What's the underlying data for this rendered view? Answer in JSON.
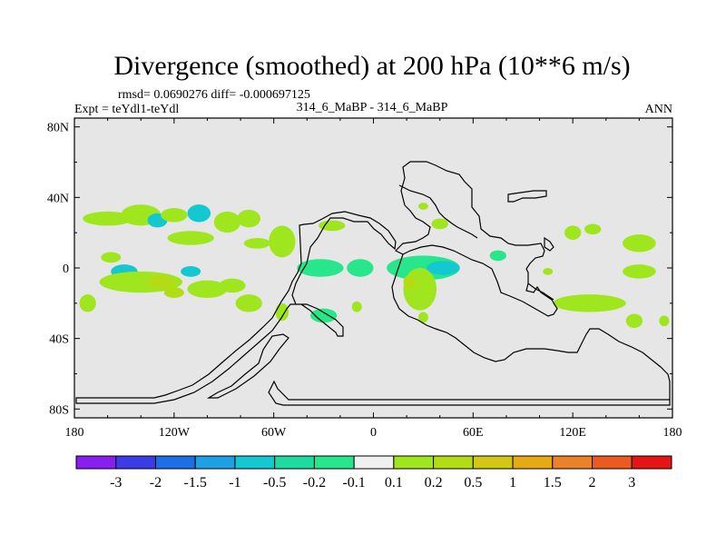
{
  "colors": {
    "land": "#e6e6e6",
    "outline": "#000000",
    "neg_3": "#8a1ef0",
    "neg_2": "#3c3ce6",
    "neg_1_5": "#1e6ee6",
    "neg_1": "#1ea0e6",
    "neg_0_5": "#14c8d2",
    "neg_0_2": "#1edca0",
    "neg_0_1": "#28e68c",
    "zero": "#f0f0f0",
    "pos_0_1": "#a0e61e",
    "pos_0_2": "#b4dc14",
    "pos_0_5": "#d2c814",
    "pos_1": "#e6aa14",
    "pos_1_5": "#eb8228",
    "pos_2": "#eb5a1e",
    "pos_3": "#e61414"
  },
  "chart_data": {
    "type": "heatmap",
    "title": "Divergence (smoothed) at 200 hPa (10**6 m/s)",
    "stats_line": "rmsd= 0.0690276 diff= -0.000697125",
    "left_label": "Expt = teYdl1-teYdl",
    "center_label": "314_6_MaBP - 314_6_MaBP",
    "right_label": "ANN",
    "x_ticks": [
      {
        "lon": -180,
        "label": "180"
      },
      {
        "lon": -120,
        "label": "120W"
      },
      {
        "lon": -60,
        "label": "60W"
      },
      {
        "lon": 0,
        "label": "0"
      },
      {
        "lon": 60,
        "label": "60E"
      },
      {
        "lon": 120,
        "label": "120E"
      },
      {
        "lon": 180,
        "label": "180"
      }
    ],
    "y_ticks": [
      {
        "lat": 80,
        "label": "80N"
      },
      {
        "lat": 40,
        "label": "40N"
      },
      {
        "lat": 0,
        "label": "0"
      },
      {
        "lat": -40,
        "label": "40S"
      },
      {
        "lat": -80,
        "label": "80S"
      }
    ],
    "xlim": [
      -180,
      180
    ],
    "ylim": [
      -85,
      85
    ],
    "colorbar": {
      "labels": [
        "-3",
        "-2",
        "-1.5",
        "-1",
        "-0.5",
        "-0.2",
        "-0.1",
        "0.1",
        "0.2",
        "0.5",
        "1",
        "1.5",
        "2",
        "3"
      ],
      "color_keys": [
        "neg_3",
        "neg_2",
        "neg_1_5",
        "neg_1",
        "neg_0_5",
        "neg_0_2",
        "neg_0_1",
        "zero",
        "pos_0_1",
        "pos_0_2",
        "pos_0_5",
        "pos_1",
        "pos_1_5",
        "pos_2",
        "pos_3"
      ]
    },
    "anomaly_regions": [
      {
        "lon": -160,
        "lat": 28,
        "rlon": 15,
        "rlat": 4,
        "level": "pos_0_1"
      },
      {
        "lon": -140,
        "lat": 30,
        "rlon": 12,
        "rlat": 6,
        "level": "pos_0_1"
      },
      {
        "lon": -130,
        "lat": 27,
        "rlon": 6,
        "rlat": 4,
        "level": "neg_0_5"
      },
      {
        "lon": -120,
        "lat": 30,
        "rlon": 8,
        "rlat": 4,
        "level": "pos_0_1"
      },
      {
        "lon": -105,
        "lat": 31,
        "rlon": 7,
        "rlat": 5,
        "level": "neg_0_5"
      },
      {
        "lon": -110,
        "lat": 17,
        "rlon": 14,
        "rlat": 4,
        "level": "pos_0_1"
      },
      {
        "lon": -88,
        "lat": 26,
        "rlon": 8,
        "rlat": 6,
        "level": "pos_0_1"
      },
      {
        "lon": -75,
        "lat": 28,
        "rlon": 7,
        "rlat": 5,
        "level": "pos_0_1"
      },
      {
        "lon": -70,
        "lat": 14,
        "rlon": 8,
        "rlat": 3,
        "level": "pos_0_1"
      },
      {
        "lon": -158,
        "lat": 6,
        "rlon": 6,
        "rlat": 3,
        "level": "pos_0_1"
      },
      {
        "lon": -150,
        "lat": -2,
        "rlon": 8,
        "rlat": 4,
        "level": "neg_0_5"
      },
      {
        "lon": -110,
        "lat": -2,
        "rlon": 6,
        "rlat": 3,
        "level": "neg_0_5"
      },
      {
        "lon": -55,
        "lat": 15,
        "rlon": 8,
        "rlat": 9,
        "level": "pos_0_1"
      },
      {
        "lon": -140,
        "lat": -8,
        "rlon": 25,
        "rlat": 6,
        "level": "pos_0_1"
      },
      {
        "lon": -128,
        "lat": -8,
        "rlon": 8,
        "rlat": 4,
        "level": "pos_0_2"
      },
      {
        "lon": -100,
        "lat": -12,
        "rlon": 12,
        "rlat": 5,
        "level": "pos_0_1"
      },
      {
        "lon": -120,
        "lat": -14,
        "rlon": 6,
        "rlat": 3,
        "level": "pos_0_2"
      },
      {
        "lon": -172,
        "lat": -20,
        "rlon": 5,
        "rlat": 5,
        "level": "pos_0_1"
      },
      {
        "lon": -85,
        "lat": -10,
        "rlon": 8,
        "rlat": 4,
        "level": "pos_0_1"
      },
      {
        "lon": -75,
        "lat": -20,
        "rlon": 8,
        "rlat": 5,
        "level": "pos_0_1"
      },
      {
        "lon": -55,
        "lat": -25,
        "rlon": 4,
        "rlat": 5,
        "level": "pos_0_1"
      },
      {
        "lon": -32,
        "lat": 0,
        "rlon": 14,
        "rlat": 5,
        "level": "neg_0_1"
      },
      {
        "lon": -8,
        "lat": 0,
        "rlon": 8,
        "rlat": 5,
        "level": "neg_0_1"
      },
      {
        "lon": -30,
        "lat": -27,
        "rlon": 8,
        "rlat": 4,
        "level": "neg_0_1"
      },
      {
        "lon": -10,
        "lat": -22,
        "rlon": 3,
        "rlat": 3,
        "level": "pos_0_1"
      },
      {
        "lon": -25,
        "lat": 24,
        "rlon": 8,
        "rlat": 3,
        "level": "pos_0_1"
      },
      {
        "lon": 30,
        "lat": 0,
        "rlon": 22,
        "rlat": 7,
        "level": "neg_0_1"
      },
      {
        "lon": 42,
        "lat": 0,
        "rlon": 10,
        "rlat": 4,
        "level": "neg_0_5"
      },
      {
        "lon": 28,
        "lat": -12,
        "rlon": 10,
        "rlat": 12,
        "level": "pos_0_1"
      },
      {
        "lon": 22,
        "lat": -8,
        "rlon": 4,
        "rlat": 4,
        "level": "pos_0_2"
      },
      {
        "lon": 30,
        "lat": -28,
        "rlon": 3,
        "rlat": 3,
        "level": "pos_0_1"
      },
      {
        "lon": 30,
        "lat": 35,
        "rlon": 3,
        "rlat": 2,
        "level": "pos_0_1"
      },
      {
        "lon": 40,
        "lat": 25,
        "rlon": 5,
        "rlat": 3,
        "level": "pos_0_1"
      },
      {
        "lon": 75,
        "lat": 7,
        "rlon": 5,
        "rlat": 3,
        "level": "neg_0_1"
      },
      {
        "lon": 105,
        "lat": -2,
        "rlon": 3,
        "rlat": 2,
        "level": "pos_0_1"
      },
      {
        "lon": 130,
        "lat": -20,
        "rlon": 22,
        "rlat": 5,
        "level": "pos_0_1"
      },
      {
        "lon": 120,
        "lat": 20,
        "rlon": 5,
        "rlat": 4,
        "level": "pos_0_1"
      },
      {
        "lon": 132,
        "lat": 22,
        "rlon": 5,
        "rlat": 3,
        "level": "pos_0_1"
      },
      {
        "lon": 160,
        "lat": 14,
        "rlon": 10,
        "rlat": 5,
        "level": "pos_0_1"
      },
      {
        "lon": 160,
        "lat": -2,
        "rlon": 10,
        "rlat": 4,
        "level": "pos_0_1"
      },
      {
        "lon": 157,
        "lat": -30,
        "rlon": 5,
        "rlat": 4,
        "level": "pos_0_1"
      },
      {
        "lon": 175,
        "lat": -30,
        "rlon": 3,
        "rlat": 3,
        "level": "pos_0_1"
      }
    ]
  }
}
